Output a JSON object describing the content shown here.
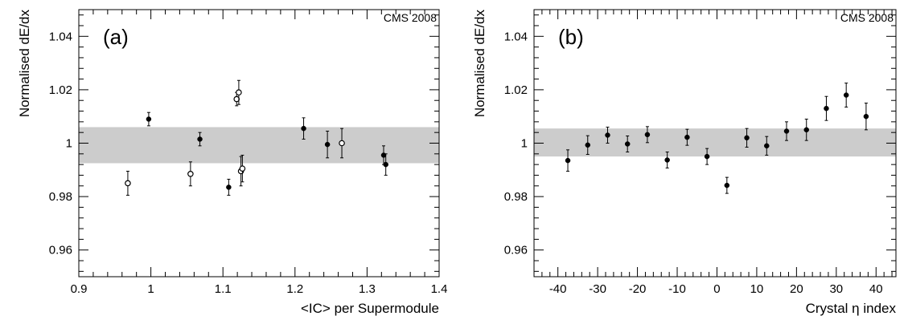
{
  "chart_data": [
    {
      "type": "scatter",
      "panel_label": "(a)",
      "experiment_label": "CMS 2008",
      "xlabel": "<IC> per Supermodule",
      "ylabel": "Normalised dE/dx",
      "xlim": [
        0.9,
        1.4
      ],
      "ylim": [
        0.95,
        1.05
      ],
      "x_ticks": [
        0.9,
        1.0,
        1.1,
        1.2,
        1.3,
        1.4
      ],
      "x_tick_labels": [
        "0.9",
        "1",
        "1.1",
        "1.2",
        "1.3",
        "1.4"
      ],
      "y_ticks": [
        0.96,
        0.98,
        1.0,
        1.02,
        1.04
      ],
      "y_tick_labels": [
        "0.96",
        "0.98",
        "1",
        "1.02",
        "1.04"
      ],
      "band": [
        0.9925,
        1.006
      ],
      "grid": false,
      "series": [
        {
          "marker": "filled",
          "points": [
            {
              "x": 0.997,
              "y": 1.009,
              "err": 0.0025
            },
            {
              "x": 1.068,
              "y": 1.0015,
              "err": 0.0025
            },
            {
              "x": 1.108,
              "y": 0.9835,
              "err": 0.003
            },
            {
              "x": 1.212,
              "y": 1.0055,
              "err": 0.004
            },
            {
              "x": 1.245,
              "y": 0.9995,
              "err": 0.005
            },
            {
              "x": 1.323,
              "y": 0.9955,
              "err": 0.0035
            },
            {
              "x": 1.326,
              "y": 0.992,
              "err": 0.004
            }
          ]
        },
        {
          "marker": "open",
          "points": [
            {
              "x": 0.968,
              "y": 0.985,
              "err": 0.0045
            },
            {
              "x": 1.055,
              "y": 0.9885,
              "err": 0.0045
            },
            {
              "x": 1.119,
              "y": 1.0165,
              "err": 0.0025
            },
            {
              "x": 1.122,
              "y": 1.019,
              "err": 0.0045
            },
            {
              "x": 1.125,
              "y": 0.9895,
              "err": 0.0055
            },
            {
              "x": 1.127,
              "y": 0.9905,
              "err": 0.005
            },
            {
              "x": 1.265,
              "y": 1.0,
              "err": 0.0055
            }
          ]
        }
      ]
    },
    {
      "type": "scatter",
      "panel_label": "(b)",
      "experiment_label": "CMS 2008",
      "xlabel": "Crystal η index",
      "ylabel": "Normalised dE/dx",
      "xlim": [
        -46,
        45
      ],
      "ylim": [
        0.95,
        1.05
      ],
      "x_ticks": [
        -40,
        -30,
        -20,
        -10,
        0,
        10,
        20,
        30,
        40
      ],
      "x_tick_labels": [
        "-40",
        "-30",
        "-20",
        "-10",
        "0",
        "10",
        "20",
        "30",
        "40"
      ],
      "y_ticks": [
        0.96,
        0.98,
        1.0,
        1.02,
        1.04
      ],
      "y_tick_labels": [
        "0.96",
        "0.98",
        "1",
        "1.02",
        "1.04"
      ],
      "band": [
        0.995,
        1.0055
      ],
      "grid": false,
      "series": [
        {
          "marker": "filled",
          "points": [
            {
              "x": -37.5,
              "y": 0.9935,
              "err": 0.004
            },
            {
              "x": -32.5,
              "y": 0.9993,
              "err": 0.0035
            },
            {
              "x": -27.5,
              "y": 1.003,
              "err": 0.003
            },
            {
              "x": -22.5,
              "y": 0.9997,
              "err": 0.003
            },
            {
              "x": -17.5,
              "y": 1.0032,
              "err": 0.003
            },
            {
              "x": -12.5,
              "y": 0.9937,
              "err": 0.003
            },
            {
              "x": -7.5,
              "y": 1.0022,
              "err": 0.003
            },
            {
              "x": -2.5,
              "y": 0.995,
              "err": 0.003
            },
            {
              "x": 2.5,
              "y": 0.9842,
              "err": 0.003
            },
            {
              "x": 7.5,
              "y": 1.002,
              "err": 0.0035
            },
            {
              "x": 12.5,
              "y": 0.999,
              "err": 0.0035
            },
            {
              "x": 17.5,
              "y": 1.0045,
              "err": 0.0035
            },
            {
              "x": 22.5,
              "y": 1.005,
              "err": 0.004
            },
            {
              "x": 27.5,
              "y": 1.013,
              "err": 0.0045
            },
            {
              "x": 32.5,
              "y": 1.018,
              "err": 0.0045
            },
            {
              "x": 37.5,
              "y": 1.01,
              "err": 0.005
            }
          ]
        }
      ]
    }
  ]
}
